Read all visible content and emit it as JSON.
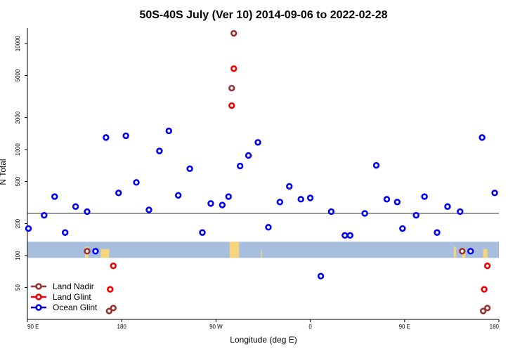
{
  "chart_data": {
    "type": "scatter",
    "title": "50S-40S July (Ver 10)   2014-09-06 to 2022-02-28",
    "xlabel": "Longitude (deg E)",
    "ylabel": "N Total",
    "x_ticks": [
      {
        "value": 90,
        "label": "90 E"
      },
      {
        "value": 180,
        "label": "180"
      },
      {
        "value": 270,
        "label": "90 W"
      },
      {
        "value": 360,
        "label": "0"
      },
      {
        "value": 450,
        "label": "90 E"
      },
      {
        "value": 540,
        "label": "180"
      }
    ],
    "xlim": [
      90,
      540
    ],
    "y_scale": "log",
    "ylim": [
      25,
      14000
    ],
    "y_ticks": [
      50,
      100,
      200,
      500,
      1000,
      2000,
      5000,
      10000
    ],
    "reference_line": 250,
    "land_band": [
      95,
      135
    ],
    "colors": {
      "land_nadir": "#993333",
      "land_glint": "#ee0000",
      "ocean_glint": "#0000ee",
      "band": "#a8bedf",
      "land": "#f5d67a",
      "line": "#333333"
    },
    "legend": {
      "position": "bottom-left",
      "entries": [
        "Land Nadir",
        "Land Glint",
        "Ocean Glint"
      ]
    },
    "series": [
      {
        "name": "Land Nadir",
        "color_key": "land_nadir",
        "points": [
          [
            147,
            110
          ],
          [
            168,
            30
          ],
          [
            172,
            32
          ],
          [
            287,
            12500
          ],
          [
            285,
            3800
          ],
          [
            505,
            110
          ],
          [
            525,
            30
          ],
          [
            529,
            32
          ]
        ]
      },
      {
        "name": "Land Glint",
        "color_key": "land_glint",
        "points": [
          [
            285,
            2600
          ],
          [
            287,
            5800
          ],
          [
            169,
            48
          ],
          [
            172,
            80
          ],
          [
            526,
            48
          ],
          [
            529,
            80
          ]
        ]
      },
      {
        "name": "Ocean Glint",
        "color_key": "ocean_glint",
        "points": [
          [
            91,
            180
          ],
          [
            106,
            240
          ],
          [
            116,
            360
          ],
          [
            126,
            165
          ],
          [
            136,
            290
          ],
          [
            147,
            260
          ],
          [
            155,
            110
          ],
          [
            165,
            1300
          ],
          [
            177,
            390
          ],
          [
            184,
            1350
          ],
          [
            194,
            490
          ],
          [
            206,
            270
          ],
          [
            216,
            970
          ],
          [
            225,
            1500
          ],
          [
            234,
            370
          ],
          [
            245,
            660
          ],
          [
            257,
            165
          ],
          [
            265,
            310
          ],
          [
            276,
            300
          ],
          [
            282,
            360
          ],
          [
            293,
            700
          ],
          [
            301,
            880
          ],
          [
            310,
            1170
          ],
          [
            320,
            185
          ],
          [
            331,
            320
          ],
          [
            340,
            450
          ],
          [
            351,
            340
          ],
          [
            360,
            350
          ],
          [
            370,
            64
          ],
          [
            380,
            260
          ],
          [
            393,
            155
          ],
          [
            398,
            155
          ],
          [
            412,
            250
          ],
          [
            423,
            710
          ],
          [
            433,
            340
          ],
          [
            443,
            320
          ],
          [
            448,
            180
          ],
          [
            461,
            240
          ],
          [
            469,
            360
          ],
          [
            481,
            165
          ],
          [
            491,
            290
          ],
          [
            503,
            260
          ],
          [
            513,
            110
          ],
          [
            524,
            1300
          ],
          [
            536,
            390
          ]
        ]
      }
    ]
  }
}
